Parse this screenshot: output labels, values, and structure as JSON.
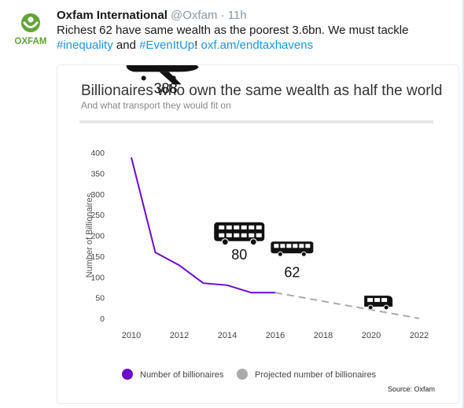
{
  "tweet": {
    "author_name": "Oxfam International",
    "author_handle": "@Oxfam",
    "separator": " · ",
    "timestamp": "11h",
    "text_before": "Richest 62 have same wealth as the poorest 3.6bn. We must tackle ",
    "hashtag_1": "#inequality",
    "text_and": " and ",
    "hashtag_2": "#EvenItUp",
    "text_excl": "! ",
    "url": "oxf.am/endtaxhavens",
    "avatar_text": "OXFAM"
  },
  "colors": {
    "oxfam_green": "#61a534",
    "link_blue": "#1b95e0",
    "series_purple": "#6b0ac9",
    "projected_gray": "#aaaaaa"
  },
  "chart_data": {
    "type": "line",
    "title": "Billionaires who own the same wealth as half the world",
    "subtitle": "And what transport they would fit on",
    "ylabel": "Number of Billionaires",
    "xlabel": "",
    "xlim": [
      2010,
      2022
    ],
    "ylim": [
      0,
      400
    ],
    "x_ticks": [
      "2010",
      "2012",
      "2014",
      "2016",
      "2018",
      "2020",
      "2022"
    ],
    "y_ticks": [
      "0",
      "50",
      "100",
      "150",
      "200",
      "250",
      "300",
      "350",
      "400"
    ],
    "grid": false,
    "legend_position": "bottom",
    "series": [
      {
        "name": "Number of billionaires",
        "style": "solid",
        "points": [
          [
            2010,
            388
          ],
          [
            2011,
            159
          ],
          [
            2012,
            128
          ],
          [
            2013,
            85
          ],
          [
            2014,
            80
          ],
          [
            2015,
            62
          ],
          [
            2016,
            62
          ]
        ]
      },
      {
        "name": "Projected number of billionaires",
        "style": "dashed",
        "points": [
          [
            2016,
            62
          ],
          [
            2022,
            0
          ]
        ]
      }
    ],
    "annotations": [
      {
        "label": "388",
        "icon": "airplane-icon",
        "x": 2011.3,
        "y": 388
      },
      {
        "label": "80",
        "icon": "double-decker-bus-icon",
        "x": 2014.5,
        "y": 80
      },
      {
        "label": "62",
        "icon": "bus-icon",
        "x": 2016.7,
        "y": 62
      },
      {
        "label": "",
        "icon": "minibus-icon",
        "x": 2020.3,
        "y": 15
      }
    ],
    "source": "Source: Oxfam"
  }
}
